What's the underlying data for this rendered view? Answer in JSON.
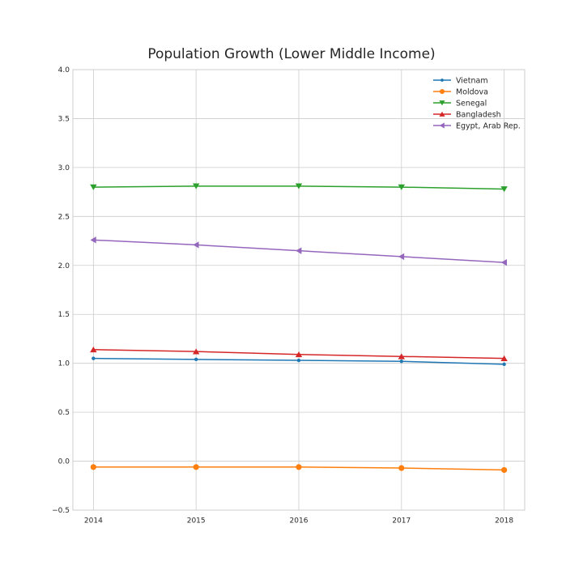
{
  "chart_data": {
    "type": "line",
    "title": "Population Growth (Lower Middle Income)",
    "xlabel": "",
    "ylabel": "",
    "x": [
      2014,
      2015,
      2016,
      2017,
      2018
    ],
    "x_tick_labels": [
      "2014",
      "2015",
      "2016",
      "2017",
      "2018"
    ],
    "ylim": [
      -0.5,
      4.0
    ],
    "y_ticks": [
      -0.5,
      0.0,
      0.5,
      1.0,
      1.5,
      2.0,
      2.5,
      3.0,
      3.5,
      4.0
    ],
    "y_tick_labels": [
      "−0.5",
      "0.0",
      "0.5",
      "1.0",
      "1.5",
      "2.0",
      "2.5",
      "3.0",
      "3.5",
      "4.0"
    ],
    "grid": true,
    "legend_position": "top-right",
    "series": [
      {
        "name": "Vietnam",
        "values": [
          1.05,
          1.04,
          1.03,
          1.02,
          0.99
        ],
        "color": "#1f77b4",
        "marker": "point"
      },
      {
        "name": "Moldova",
        "values": [
          -0.06,
          -0.06,
          -0.06,
          -0.07,
          -0.09
        ],
        "color": "#ff7f0e",
        "marker": "circle"
      },
      {
        "name": "Senegal",
        "values": [
          2.8,
          2.81,
          2.81,
          2.8,
          2.78
        ],
        "color": "#2ca02c",
        "marker": "triangle-down"
      },
      {
        "name": "Bangladesh",
        "values": [
          1.14,
          1.12,
          1.09,
          1.07,
          1.05
        ],
        "color": "#d62728",
        "marker": "triangle-up"
      },
      {
        "name": "Egypt, Arab Rep.",
        "values": [
          2.26,
          2.21,
          2.15,
          2.09,
          2.03
        ],
        "color": "#9467bd",
        "marker": "triangle-left"
      }
    ]
  }
}
